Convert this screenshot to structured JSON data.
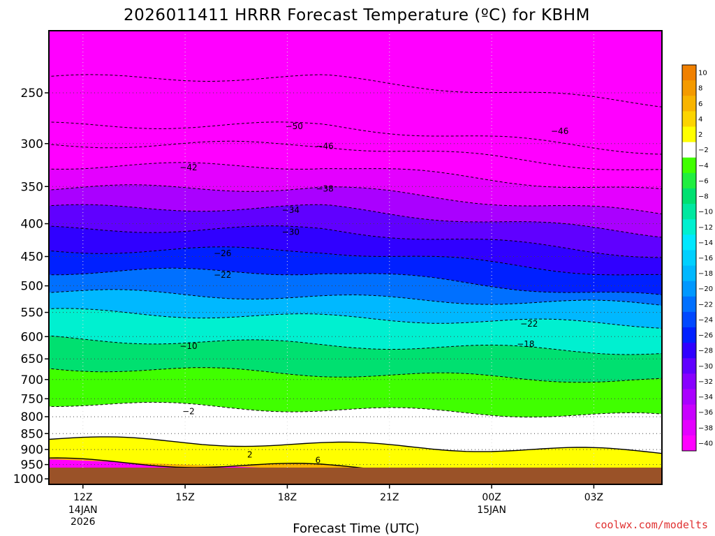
{
  "title": "2026011411 HRRR Forecast Temperature (ºC) for KBHM",
  "credit": "coolwx.com/modelts",
  "chart_data": {
    "type": "heatmap",
    "title": "2026011411 HRRR Forecast Temperature (ºC) for KBHM",
    "xlabel": "Forecast Time (UTC)",
    "ylabel": "",
    "y_scale": "log-pressure",
    "y_inverted": true,
    "y_ticks": [
      250,
      300,
      350,
      400,
      450,
      500,
      550,
      600,
      650,
      700,
      750,
      800,
      850,
      900,
      950,
      1000
    ],
    "x_ticks": [
      {
        "label": "12Z",
        "sub": [
          "14JAN",
          "2026"
        ],
        "hour": 12
      },
      {
        "label": "15Z",
        "sub": [],
        "hour": 15
      },
      {
        "label": "18Z",
        "sub": [],
        "hour": 18
      },
      {
        "label": "21Z",
        "sub": [],
        "hour": 21
      },
      {
        "label": "00Z",
        "sub": [
          "15JAN"
        ],
        "hour": 24
      },
      {
        "label": "03Z",
        "sub": [],
        "hour": 27
      }
    ],
    "x_range_hours": [
      11,
      29
    ],
    "y_range_hpa": [
      200,
      1020
    ],
    "grid": true,
    "colorbar": {
      "levels": [
        "10",
        "8",
        "6",
        "4",
        "2",
        "−2",
        "−4",
        "−6",
        "−8",
        "−10",
        "−12",
        "−14",
        "−16",
        "−18",
        "−20",
        "−22",
        "−24",
        "−26",
        "−28",
        "−30",
        "−32",
        "−34",
        "−36",
        "−38",
        "−40"
      ],
      "colors": [
        "#f08000",
        "#f49a00",
        "#f8b400",
        "#fcd400",
        "#ffff00",
        "#ffffff",
        "#40ff00",
        "#20ee40",
        "#00e070",
        "#00e8a0",
        "#00f0d0",
        "#00e8ff",
        "#00d0ff",
        "#00b8ff",
        "#0098ff",
        "#0070ff",
        "#0048ff",
        "#0020ff",
        "#3000ff",
        "#6000ff",
        "#8800ff",
        "#aa00ff",
        "#c800ff",
        "#e400ff",
        "#ff00ff"
      ]
    },
    "contour_labels": [
      {
        "text": "−50",
        "hour": 18.2,
        "p": 282
      },
      {
        "text": "−46",
        "hour": 19.1,
        "p": 303
      },
      {
        "text": "−46",
        "hour": 26.0,
        "p": 287
      },
      {
        "text": "−42",
        "hour": 15.1,
        "p": 327
      },
      {
        "text": "−38",
        "hour": 19.1,
        "p": 353
      },
      {
        "text": "−34",
        "hour": 18.1,
        "p": 381
      },
      {
        "text": "−30",
        "hour": 18.1,
        "p": 412
      },
      {
        "text": "−26",
        "hour": 16.1,
        "p": 445
      },
      {
        "text": "−22",
        "hour": 16.1,
        "p": 481
      },
      {
        "text": "−22",
        "hour": 25.1,
        "p": 573
      },
      {
        "text": "−18",
        "hour": 25.0,
        "p": 616
      },
      {
        "text": "−10",
        "hour": 15.1,
        "p": 621
      },
      {
        "text": "−2",
        "hour": 15.1,
        "p": 785
      },
      {
        "text": "2",
        "hour": 16.9,
        "p": 917
      },
      {
        "text": "6",
        "hour": 18.9,
        "p": 935
      }
    ],
    "isotherm_levels_hpa": [
      {
        "temp": -54,
        "p": 237
      },
      {
        "temp": -50,
        "p": 281
      },
      {
        "temp": -46,
        "p": 301
      },
      {
        "temp": -42,
        "p": 325
      },
      {
        "temp": -38,
        "p": 352
      },
      {
        "temp": -34,
        "p": 378
      },
      {
        "temp": -30,
        "p": 408
      },
      {
        "temp": -26,
        "p": 440
      },
      {
        "temp": -22,
        "p": 475
      },
      {
        "temp": -18,
        "p": 510
      },
      {
        "temp": -14,
        "p": 548
      },
      {
        "temp": -10,
        "p": 604
      },
      {
        "temp": -6,
        "p": 670
      },
      {
        "temp": -2,
        "p": 762
      },
      {
        "temp": 2,
        "p": 866
      },
      {
        "temp": 6,
        "p": 938
      }
    ]
  }
}
